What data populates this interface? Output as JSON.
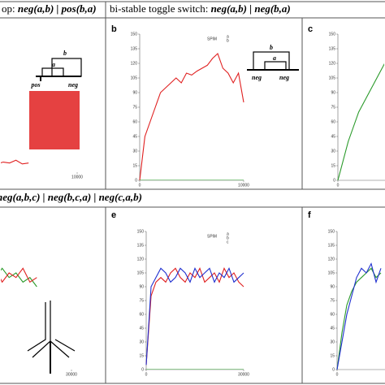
{
  "headers": [
    {
      "text": "op: ",
      "formula": "neg(a,b) | pos(b,a)"
    },
    {
      "text": "bi-stable toggle switch: ",
      "formula": "neg(a,b) | neg(b,a)"
    },
    {
      "text": "",
      "formula": "neg(a,b,c) | neg(b,c,a) | neg(c,a,b)"
    }
  ],
  "diagram_labels": {
    "a": [
      "b",
      "a",
      "pos",
      "neg"
    ],
    "b": [
      "b",
      "a",
      "neg",
      "neg"
    ]
  },
  "chart_data": [
    {
      "type": "line",
      "label": "",
      "xlim": [
        0,
        10000
      ],
      "ylim": [
        0,
        150
      ],
      "xticks": [
        10000
      ],
      "x": [
        0,
        600,
        1200,
        1800,
        2400,
        3000,
        3600,
        4200,
        4800,
        5400
      ],
      "series": [
        {
          "color": "#e02020",
          "values": [
            12,
            10,
            8,
            12,
            9,
            11,
            10,
            13,
            9,
            10
          ]
        }
      ]
    },
    {
      "type": "line",
      "label": "b",
      "legend_title": "SPiM",
      "xlim": [
        0,
        10000
      ],
      "ylim": [
        0,
        150
      ],
      "yticks": [
        0,
        15,
        30,
        45,
        60,
        75,
        90,
        105,
        120,
        135,
        150
      ],
      "xticks": [
        0,
        10000
      ],
      "x": [
        0,
        500,
        1000,
        1500,
        2000,
        2500,
        3000,
        3500,
        4000,
        4500,
        5000,
        5500,
        6000,
        6500,
        7000,
        7500,
        8000,
        8500,
        9000,
        9500,
        10000
      ],
      "series": [
        {
          "name": "a",
          "color": "#e02020",
          "values": [
            0,
            45,
            60,
            75,
            90,
            95,
            100,
            105,
            100,
            110,
            108,
            112,
            115,
            118,
            125,
            130,
            115,
            110,
            100,
            110,
            80
          ]
        },
        {
          "name": "b",
          "color": "#2a9a2a",
          "values": [
            0,
            0,
            0,
            0,
            0,
            0,
            0,
            0,
            0,
            0,
            0,
            0,
            0,
            0,
            0,
            0,
            0,
            0,
            0,
            0,
            0
          ]
        }
      ]
    },
    {
      "type": "line",
      "label": "c",
      "xlim": [
        0,
        10000
      ],
      "ylim": [
        0,
        150
      ],
      "yticks": [
        0,
        15,
        30,
        45,
        60,
        75,
        90,
        105,
        120,
        135,
        150
      ],
      "xticks": [
        0
      ],
      "x": [
        0,
        500,
        1000,
        1500,
        2000,
        2500,
        3000,
        3500,
        4000,
        4500
      ],
      "series": [
        {
          "color": "#2a9a2a",
          "values": [
            0,
            20,
            40,
            55,
            70,
            80,
            90,
            100,
            110,
            120
          ]
        }
      ]
    },
    {
      "type": "line",
      "label": "",
      "xlim": [
        0,
        30000
      ],
      "ylim": [
        0,
        150
      ],
      "xticks": [
        30000
      ],
      "x": [
        0,
        2000,
        4000,
        6000,
        8000,
        10000,
        12000,
        14000,
        16000,
        18000,
        20000
      ],
      "series": [
        {
          "color": "#2a9a2a",
          "values": [
            100,
            110,
            95,
            105,
            100,
            110,
            100,
            105,
            95,
            100,
            90
          ]
        },
        {
          "color": "#e02020",
          "values": [
            90,
            100,
            105,
            95,
            110,
            95,
            105,
            100,
            110,
            95,
            100
          ]
        }
      ]
    },
    {
      "type": "line",
      "label": "e",
      "legend_title": "SPiM",
      "xlim": [
        0,
        30000
      ],
      "ylim": [
        0,
        150
      ],
      "yticks": [
        0,
        15,
        30,
        45,
        60,
        75,
        90,
        105,
        120,
        135,
        150
      ],
      "xticks": [
        0,
        30000
      ],
      "x": [
        0,
        1500,
        3000,
        4500,
        6000,
        7500,
        9000,
        10500,
        12000,
        13500,
        15000,
        16500,
        18000,
        19500,
        21000,
        22500,
        24000,
        25500,
        27000,
        28500,
        30000
      ],
      "series": [
        {
          "name": "a",
          "color": "#e02020",
          "values": [
            5,
            80,
            95,
            100,
            95,
            105,
            110,
            100,
            95,
            105,
            100,
            110,
            95,
            100,
            105,
            95,
            110,
            100,
            105,
            95,
            90
          ]
        },
        {
          "name": "b",
          "color": "#2030d0",
          "values": [
            5,
            90,
            100,
            110,
            105,
            95,
            100,
            110,
            105,
            95,
            110,
            100,
            105,
            110,
            95,
            105,
            100,
            110,
            95,
            100,
            105
          ]
        },
        {
          "name": "c",
          "color": "#2a9a2a",
          "values": [
            0,
            0,
            0,
            0,
            0,
            0,
            0,
            0,
            0,
            0,
            0,
            0,
            0,
            0,
            0,
            0,
            0,
            0,
            0,
            0,
            0
          ]
        }
      ]
    },
    {
      "type": "line",
      "label": "f",
      "xlim": [
        0,
        30000
      ],
      "ylim": [
        0,
        150
      ],
      "yticks": [
        0,
        15,
        30,
        45,
        60,
        75,
        90,
        105,
        120,
        135,
        150
      ],
      "xticks": [
        0
      ],
      "x": [
        0,
        1500,
        3000,
        4500,
        6000,
        7500,
        9000,
        10500,
        12000,
        13500
      ],
      "series": [
        {
          "color": "#2a9a2a",
          "values": [
            0,
            40,
            70,
            85,
            95,
            100,
            105,
            110,
            100,
            105
          ]
        },
        {
          "color": "#2030d0",
          "values": [
            0,
            30,
            60,
            80,
            100,
            110,
            105,
            115,
            95,
            110
          ]
        }
      ]
    }
  ]
}
